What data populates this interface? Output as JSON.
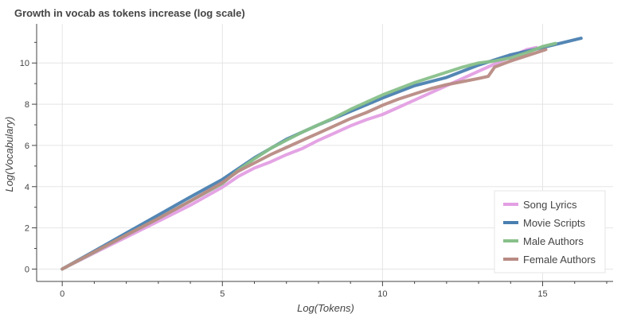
{
  "chart_data": {
    "type": "line",
    "title": "Growth in vocab as tokens increase (log scale)",
    "xlabel": "Log(Tokens)",
    "ylabel": "Log(Vocabulary)",
    "xlim": [
      -0.8,
      17.2
    ],
    "ylim": [
      -0.6,
      11.9
    ],
    "xticks": [
      0,
      5,
      10,
      15
    ],
    "yticks": [
      0,
      2,
      4,
      6,
      8,
      10
    ],
    "grid": true,
    "legend_position": "bottom-right",
    "series": [
      {
        "name": "Song Lyrics",
        "color": "#e39fe3",
        "x": [
          0,
          1,
          2,
          3,
          4,
          5,
          5.5,
          6,
          6.5,
          7,
          7.5,
          8,
          8.5,
          9,
          9.5,
          10,
          10.5,
          11,
          11.5,
          12,
          12.5,
          13,
          13.5,
          14,
          14.5,
          14.8
        ],
        "y": [
          0,
          0.78,
          1.55,
          2.32,
          3.1,
          3.97,
          4.5,
          4.9,
          5.2,
          5.55,
          5.85,
          6.25,
          6.6,
          6.95,
          7.25,
          7.5,
          7.85,
          8.2,
          8.55,
          8.9,
          9.25,
          9.6,
          9.95,
          10.3,
          10.65,
          10.75
        ]
      },
      {
        "name": "Movie Scripts",
        "color": "#4a7fb0",
        "x": [
          0,
          1,
          2,
          3,
          4,
          5,
          6,
          7,
          8,
          9,
          10,
          11,
          12,
          13,
          14,
          15,
          16.2
        ],
        "y": [
          0,
          0.87,
          1.75,
          2.62,
          3.5,
          4.35,
          5.4,
          6.3,
          7.0,
          7.65,
          8.3,
          8.9,
          9.3,
          9.9,
          10.4,
          10.75,
          11.2
        ]
      },
      {
        "name": "Male Authors",
        "color": "#88c08a",
        "x": [
          0,
          1,
          2,
          3,
          4,
          5,
          5.5,
          6,
          6.5,
          7,
          7.5,
          8,
          8.5,
          9,
          9.5,
          10,
          10.5,
          11,
          11.5,
          12,
          12.5,
          13,
          13.5,
          14,
          14.5,
          15,
          15.4
        ],
        "y": [
          0,
          0.82,
          1.65,
          2.45,
          3.3,
          4.15,
          4.8,
          5.35,
          5.85,
          6.25,
          6.65,
          7.0,
          7.35,
          7.75,
          8.1,
          8.45,
          8.75,
          9.05,
          9.3,
          9.55,
          9.8,
          10.0,
          10.1,
          10.25,
          10.5,
          10.8,
          10.95
        ]
      },
      {
        "name": "Female Authors",
        "color": "#b88b84",
        "x": [
          0,
          1,
          2,
          3,
          4,
          5,
          5.5,
          6,
          6.5,
          7,
          7.5,
          8,
          8.5,
          9,
          9.5,
          10,
          10.5,
          11,
          11.5,
          12,
          12.5,
          13,
          13.3,
          13.5,
          14,
          14.5,
          15.1
        ],
        "y": [
          0,
          0.83,
          1.65,
          2.45,
          3.3,
          4.2,
          4.75,
          5.15,
          5.55,
          5.9,
          6.25,
          6.6,
          6.95,
          7.3,
          7.6,
          7.95,
          8.25,
          8.5,
          8.75,
          8.95,
          9.1,
          9.25,
          9.35,
          9.8,
          10.1,
          10.35,
          10.65
        ]
      }
    ]
  },
  "colors": {
    "grid": "#e5e5e5",
    "axis": "#444444",
    "legend_border": "#e5e5e5"
  }
}
